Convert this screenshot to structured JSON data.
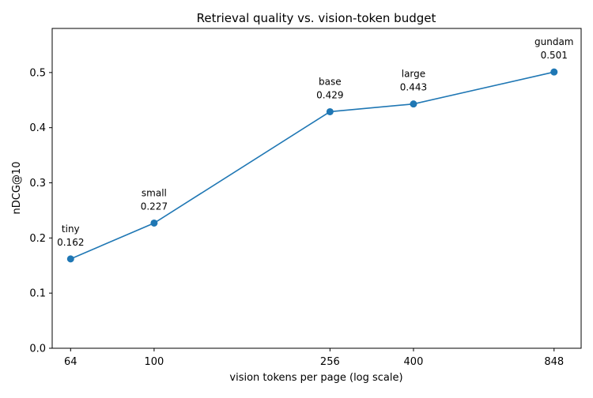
{
  "chart_data": {
    "type": "line",
    "title": "Retrieval quality vs. vision-token budget",
    "xlabel": "vision tokens per page (log scale)",
    "ylabel": "nDCG@10",
    "x_scale": "log",
    "xlim": [
      58,
      980
    ],
    "ylim": [
      0,
      0.58
    ],
    "x_ticks": [
      64,
      100,
      256,
      400,
      848
    ],
    "x_tick_labels": [
      "64",
      "100",
      "256",
      "400",
      "848"
    ],
    "y_ticks": [
      0,
      0.1,
      0.2,
      0.3,
      0.4,
      0.5
    ],
    "y_tick_labels": [
      "0.0",
      "0.1",
      "0.2",
      "0.3",
      "0.4",
      "0.5"
    ],
    "grid": false,
    "line_color": "#1f77b4",
    "series": [
      {
        "x": [
          64,
          100,
          256,
          400,
          848
        ],
        "y": [
          0.162,
          0.227,
          0.429,
          0.443,
          0.501
        ],
        "point_names": [
          "tiny",
          "small",
          "base",
          "large",
          "gundam"
        ],
        "value_labels": [
          "0.162",
          "0.227",
          "0.429",
          "0.443",
          "0.501"
        ]
      }
    ]
  }
}
